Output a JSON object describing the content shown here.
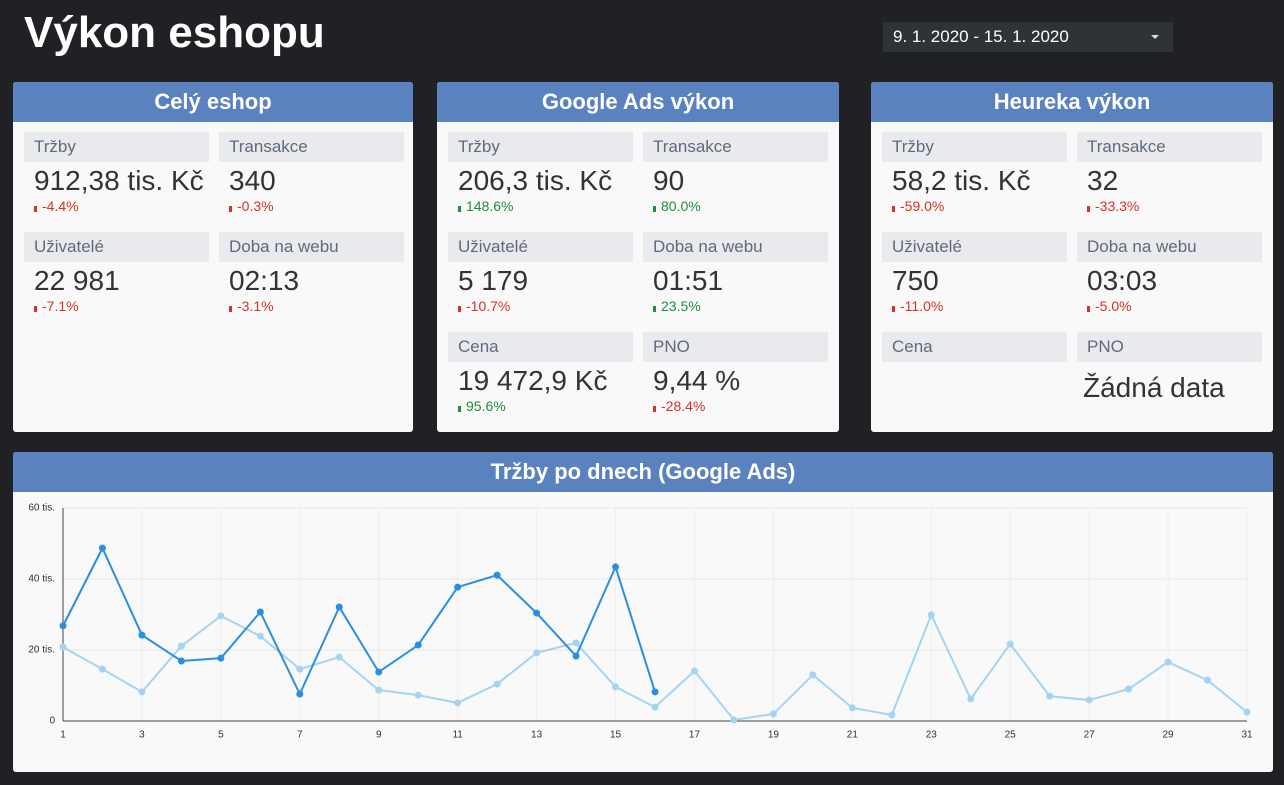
{
  "header": {
    "title": "Výkon eshopu",
    "date_range": "9. 1. 2020 - 15. 1. 2020"
  },
  "cards": [
    {
      "title": "Celý eshop",
      "metrics": [
        {
          "label": "Tržby",
          "value": "912,38 tis. Kč",
          "change": "-4.4%"
        },
        {
          "label": "Transakce",
          "value": "340",
          "change": "-0.3%"
        },
        {
          "label": "Uživatelé",
          "value": "22 981",
          "change": "-7.1%"
        },
        {
          "label": "Doba na webu",
          "value": "02:13",
          "change": "-3.1%"
        }
      ]
    },
    {
      "title": "Google Ads výkon",
      "metrics": [
        {
          "label": "Tržby",
          "value": "206,3 tis. Kč",
          "change": "148.6%"
        },
        {
          "label": "Transakce",
          "value": "90",
          "change": "80.0%"
        },
        {
          "label": "Uživatelé",
          "value": "5 179",
          "change": "-10.7%"
        },
        {
          "label": "Doba na webu",
          "value": "01:51",
          "change": "23.5%"
        },
        {
          "label": "Cena",
          "value": "19 472,9 Kč",
          "change": "95.6%"
        },
        {
          "label": "PNO",
          "value": "9,44 %",
          "change": "-28.4%"
        }
      ]
    },
    {
      "title": "Heureka výkon",
      "metrics": [
        {
          "label": "Tržby",
          "value": "58,2 tis. Kč",
          "change": "-59.0%"
        },
        {
          "label": "Transakce",
          "value": "32",
          "change": "-33.3%"
        },
        {
          "label": "Uživatelé",
          "value": "750",
          "change": "-11.0%"
        },
        {
          "label": "Doba na webu",
          "value": "03:03",
          "change": "-5.0%"
        },
        {
          "label": "Cena"
        },
        {
          "label": "PNO",
          "value": "Žádná data"
        }
      ]
    }
  ],
  "chart_data": {
    "type": "line",
    "title": "Tržby po dnech (Google Ads)",
    "x": [
      1,
      2,
      3,
      4,
      5,
      6,
      7,
      8,
      9,
      10,
      11,
      12,
      13,
      14,
      15,
      16,
      17,
      18,
      19,
      20,
      21,
      22,
      23,
      24,
      25,
      26,
      27,
      28,
      29,
      30,
      31
    ],
    "series": [
      {
        "color": "#a5d4f3",
        "values": [
          20.8,
          14.6,
          8.2,
          21.1,
          29.6,
          23.9,
          14.6,
          18.0,
          8.7,
          7.3,
          5.1,
          10.4,
          19.2,
          22.0,
          9.6,
          3.9,
          14.1,
          0.3,
          2.0,
          13.0,
          3.7,
          1.7,
          29.9,
          6.2,
          21.7,
          7.0,
          5.9,
          9.0,
          16.6,
          11.5,
          2.5
        ]
      },
      {
        "color": "#2b8fe0",
        "values": [
          26.8,
          48.7,
          24.2,
          16.9,
          17.7,
          30.7,
          7.6,
          32.1,
          13.8,
          21.4,
          37.7,
          41.1,
          30.4,
          18.3,
          43.4,
          8.2,
          null,
          null,
          null,
          null,
          null,
          null,
          null,
          null,
          null,
          null,
          null,
          null,
          null,
          null,
          null
        ]
      }
    ],
    "xlim": [
      1,
      31
    ],
    "xticks": [
      1,
      3,
      5,
      7,
      9,
      11,
      13,
      15,
      17,
      19,
      21,
      23,
      25,
      27,
      29,
      31
    ],
    "ylim": [
      0,
      60
    ],
    "yticks": [
      0,
      {
        "value": 20,
        "label": "20 tis."
      },
      {
        "value": 40,
        "label": "40 tis."
      },
      {
        "value": 60,
        "label": "60 tis."
      }
    ],
    "grid": true
  }
}
